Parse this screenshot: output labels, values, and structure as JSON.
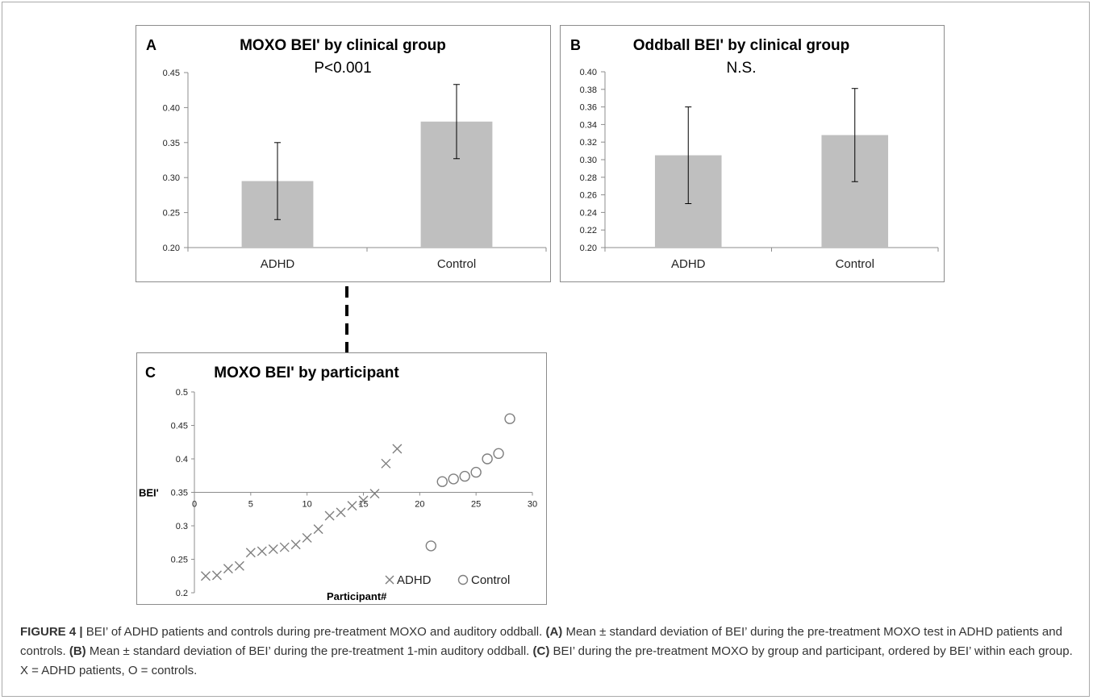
{
  "colors": {
    "bar": "#bfbfbf",
    "axis": "#8c8c8c",
    "text": "#222222",
    "marker": "#7f7f7f"
  },
  "chart_data": [
    {
      "panel": "A",
      "type": "bar",
      "title": "MOXO BEI' by clinical group",
      "subtitle": "P<0.001",
      "categories": [
        "ADHD",
        "Control"
      ],
      "values": [
        0.295,
        0.38
      ],
      "errors": [
        0.055,
        0.053
      ],
      "ylim": [
        0.2,
        0.45
      ],
      "yticks": [
        "0.20",
        "0.25",
        "0.30",
        "0.35",
        "0.40",
        "0.45"
      ],
      "grid": false
    },
    {
      "panel": "B",
      "type": "bar",
      "title": "Oddball BEI' by clinical group",
      "subtitle": "N.S.",
      "categories": [
        "ADHD",
        "Control"
      ],
      "values": [
        0.305,
        0.328
      ],
      "errors": [
        0.055,
        0.053
      ],
      "ylim": [
        0.2,
        0.4
      ],
      "yticks": [
        "0.20",
        "0.22",
        "0.24",
        "0.26",
        "0.28",
        "0.30",
        "0.32",
        "0.34",
        "0.36",
        "0.38",
        "0.40"
      ],
      "grid": false
    },
    {
      "panel": "C",
      "type": "scatter",
      "title": "MOXO BEI' by participant",
      "xlabel": "Participant#",
      "ylabel": "BEI'",
      "xlim": [
        0,
        30
      ],
      "ylim": [
        0.2,
        0.5
      ],
      "xticks": [
        "0",
        "5",
        "10",
        "15",
        "20",
        "25",
        "30"
      ],
      "yticks": [
        "0.2",
        "0.25",
        "0.3",
        "0.35",
        "0.4",
        "0.45",
        "0.5"
      ],
      "x_axis_crosses_at": 0.35,
      "legend_position": "bottom-right",
      "series": [
        {
          "name": "ADHD",
          "marker": "x",
          "x": [
            1,
            2,
            3,
            4,
            5,
            6,
            7,
            8,
            9,
            10,
            11,
            12,
            13,
            14,
            15,
            16,
            17,
            18
          ],
          "y": [
            0.225,
            0.226,
            0.236,
            0.24,
            0.26,
            0.262,
            0.265,
            0.268,
            0.272,
            0.282,
            0.295,
            0.315,
            0.32,
            0.33,
            0.338,
            0.348,
            0.393,
            0.415
          ]
        },
        {
          "name": "Control",
          "marker": "o",
          "x": [
            21,
            22,
            23,
            24,
            25,
            26,
            27,
            28
          ],
          "y": [
            0.27,
            0.366,
            0.37,
            0.374,
            0.38,
            0.4,
            0.408,
            0.46
          ]
        }
      ]
    }
  ],
  "caption": {
    "lead": "FIGURE 4 |",
    "segments": [
      {
        "t": " BEI’ of ADHD patients and controls during pre-treatment MOXO and auditory oddball. ",
        "b": false
      },
      {
        "t": "(A)",
        "b": true
      },
      {
        "t": " Mean ± standard deviation of BEI’ during the pre-treatment MOXO test in ADHD patients and controls. ",
        "b": false
      },
      {
        "t": "(B)",
        "b": true
      },
      {
        "t": " Mean ± standard deviation of BEI’ during the pre-treatment 1-min auditory oddball. ",
        "b": false
      },
      {
        "t": "(C)",
        "b": true
      },
      {
        "t": " BEI’ during the pre-treatment MOXO by group and participant, ordered by BEI’ within each group. X = ADHD patients, O = controls.",
        "b": false
      }
    ]
  }
}
